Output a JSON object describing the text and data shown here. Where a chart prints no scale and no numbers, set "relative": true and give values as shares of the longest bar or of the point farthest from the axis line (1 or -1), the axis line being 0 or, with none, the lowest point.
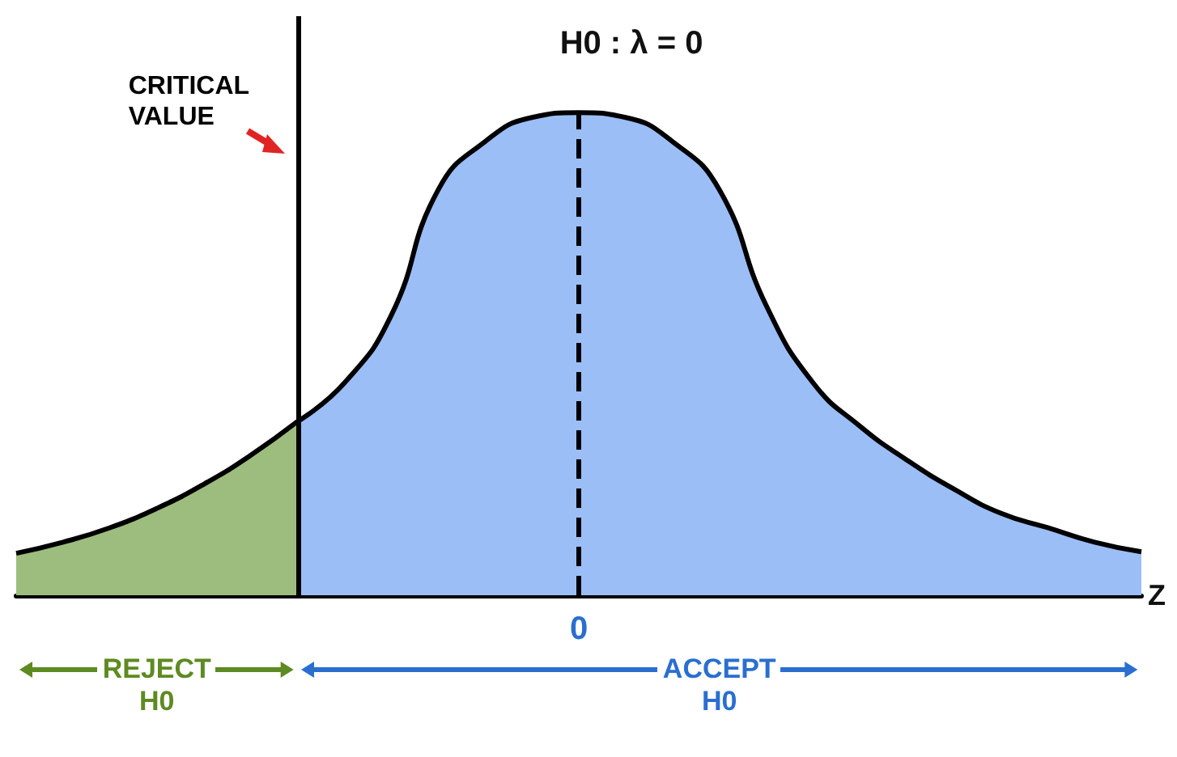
{
  "chart_data": {
    "type": "area",
    "relative": true,
    "title": "H0 : λ = 0",
    "xlabel": "Z",
    "categories": [
      null,
      null,
      null,
      null,
      null,
      null,
      null,
      null,
      null,
      null,
      null,
      null,
      null,
      null,
      null,
      null,
      null,
      null,
      null,
      null,
      null,
      null,
      null,
      null,
      null
    ],
    "series": [
      {
        "color": "#9dbd7e",
        "values": [
          0.087,
          0.11,
          0.14,
          0.18,
          0.23,
          0.29,
          0.36,
          null,
          null,
          null,
          null,
          null,
          null,
          null,
          null,
          null,
          null,
          null,
          null,
          null,
          null,
          null,
          null,
          null,
          null
        ]
      },
      {
        "color": "#9bbef7",
        "values": [
          null,
          null,
          null,
          null,
          null,
          null,
          0.36,
          0.44,
          0.58,
          0.84,
          0.94,
          0.99,
          1,
          0.99,
          0.94,
          0.84,
          0.6,
          0.44,
          0.35,
          0.28,
          0.22,
          0.17,
          0.14,
          0.11,
          0.09
        ]
      }
    ],
    "ref_lines": [
      {
        "axis": "x",
        "label": "CRITICAL VALUE",
        "color": "#000000",
        "line_style": "solid"
      },
      {
        "axis": "x",
        "label": "0",
        "color": "#000000",
        "line_style": "dashed"
      }
    ],
    "annotations": [
      "REJECT H0",
      "ACCEPT H0"
    ]
  }
}
